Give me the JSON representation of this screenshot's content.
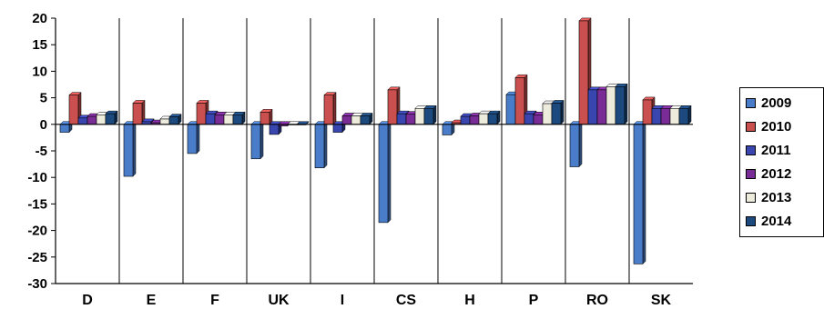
{
  "chart_data": {
    "type": "bar",
    "title": "",
    "xlabel": "",
    "ylabel": "",
    "categories": [
      "D",
      "E",
      "F",
      "UK",
      "I",
      "CS",
      "H",
      "P",
      "RO",
      "SK"
    ],
    "ylim": [
      -30,
      20
    ],
    "yticks": [
      "20",
      "15",
      "10",
      "5",
      "0",
      "-5",
      "-10",
      "-15",
      "-20",
      "-25",
      "-30"
    ],
    "grid": "vertical category separators",
    "legend_position": "right",
    "series": [
      {
        "name": "2009",
        "color": "#4a7dc9",
        "values": [
          -1.5,
          -9.8,
          -5.5,
          -6.5,
          -8.2,
          -18.5,
          -2.0,
          5.6,
          -8.0,
          -26.3
        ]
      },
      {
        "name": "2010",
        "color": "#c9504f",
        "values": [
          5.5,
          4.0,
          4.0,
          2.3,
          5.5,
          6.5,
          0.3,
          8.8,
          19.5,
          4.6
        ]
      },
      {
        "name": "2011",
        "color": "#3a46b0",
        "values": [
          1.2,
          0.5,
          2.0,
          -1.9,
          -1.5,
          2.0,
          1.5,
          2.0,
          6.5,
          3.0
        ]
      },
      {
        "name": "2012",
        "color": "#7a2c96",
        "values": [
          1.5,
          0.3,
          1.8,
          -0.3,
          1.6,
          1.9,
          1.6,
          1.8,
          6.5,
          3.0
        ]
      },
      {
        "name": "2013",
        "color": "#ecebdc",
        "values": [
          1.8,
          1.0,
          1.8,
          -0.1,
          1.6,
          3.0,
          2.0,
          3.9,
          7.1,
          3.0
        ]
      },
      {
        "name": "2014",
        "color": "#1d4a7e",
        "values": [
          2.0,
          1.4,
          1.8,
          0.0,
          1.6,
          3.0,
          2.0,
          4.0,
          7.1,
          3.0
        ]
      }
    ]
  }
}
